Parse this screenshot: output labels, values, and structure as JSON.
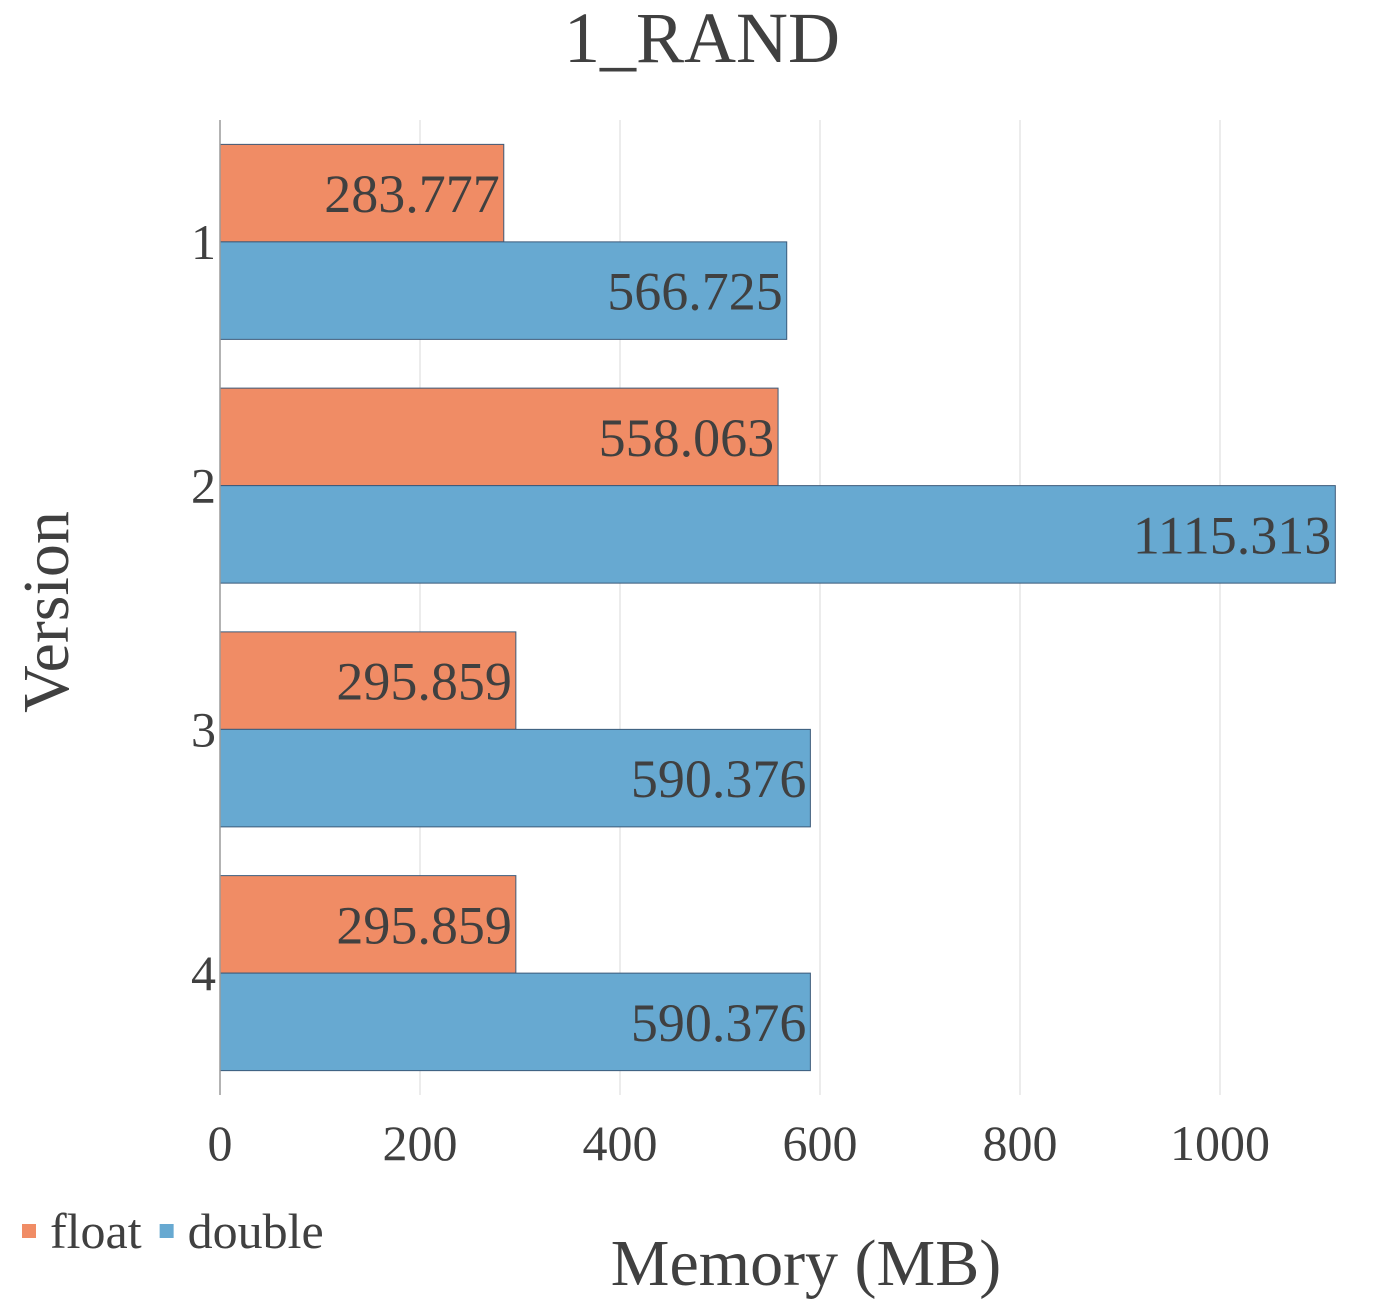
{
  "chart_data": {
    "type": "bar",
    "orientation": "horizontal",
    "title": "1_RAND",
    "xlabel": "Memory (MB)",
    "ylabel": "Version",
    "categories": [
      "1",
      "2",
      "3",
      "4"
    ],
    "series": [
      {
        "name": "float",
        "color": "#f08c65",
        "values": [
          283.777,
          558.063,
          295.859,
          295.859
        ]
      },
      {
        "name": "double",
        "color": "#67a9d1",
        "values": [
          566.725,
          1115.313,
          590.376,
          590.376
        ]
      }
    ],
    "xlim": [
      0,
      1130
    ],
    "xticks": [
      0,
      200,
      400,
      600,
      800,
      1000
    ],
    "grid": true,
    "legend_position": "bottom-left",
    "bar_edge_color": "#3b5a7a"
  }
}
